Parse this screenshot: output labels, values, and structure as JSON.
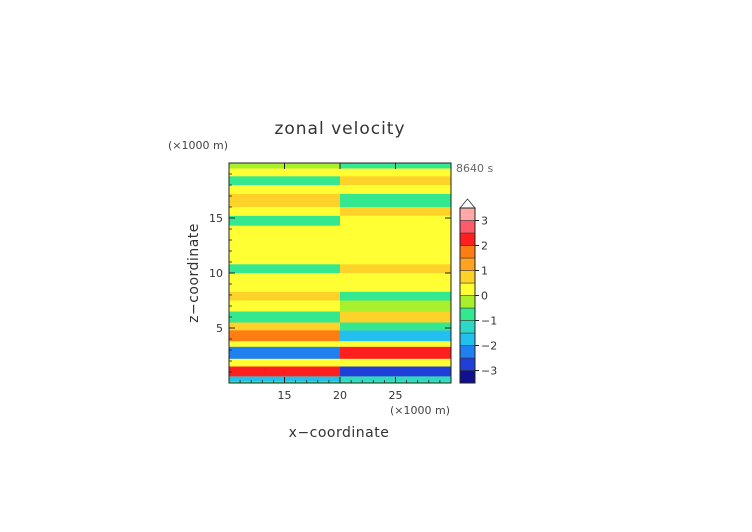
{
  "chart_data": {
    "type": "heatmap",
    "title": "zonal velocity",
    "time_label": "8640 s",
    "xlabel": "x−coordinate",
    "ylabel": "z−coordinate",
    "x_unit": "(×1000 m)",
    "y_unit": "(×1000 m)",
    "xlim": [
      10,
      30
    ],
    "ylim": [
      0,
      20
    ],
    "xticks": [
      15,
      20,
      25
    ],
    "yticks": [
      5,
      10,
      15
    ],
    "colorbar": {
      "levels": [
        -3.5,
        -3,
        -2.5,
        -2,
        -1.5,
        -1,
        -0.5,
        0,
        0.5,
        1,
        1.5,
        2,
        2.5,
        3,
        3.5
      ],
      "tick_values": [
        -3,
        -2,
        -1,
        0,
        1,
        2,
        3
      ],
      "tick_labels": [
        "−3",
        "−2",
        "−1",
        "0",
        "1",
        "2",
        "3"
      ],
      "extend": "max",
      "colors": [
        "#101090",
        "#1f3fd8",
        "#1f80f0",
        "#22c0ef",
        "#2ed8c6",
        "#34e88f",
        "#a8f02c",
        "#ffff33",
        "#ffd22a",
        "#ffa320",
        "#ff7d12",
        "#ff1f1f",
        "#ff5a6a",
        "#ffa8a8"
      ],
      "extend_color": "#ffffff"
    },
    "bands": [
      {
        "z": [
          0.0,
          0.15
        ],
        "left": -0.9,
        "right": -0.9
      },
      {
        "z": [
          0.15,
          0.6
        ],
        "left": -1.6,
        "right": -1.2
      },
      {
        "z": [
          0.6,
          1.5
        ],
        "left": 2.2,
        "right": -2.6
      },
      {
        "z": [
          1.5,
          2.2
        ],
        "left": 0.2,
        "right": 0.1
      },
      {
        "z": [
          2.2,
          3.3
        ],
        "left": -2.4,
        "right": 2.1
      },
      {
        "z": [
          3.3,
          3.8
        ],
        "left": 0.4,
        "right": 0.1
      },
      {
        "z": [
          3.8,
          4.8
        ],
        "left": 1.6,
        "right": -1.8
      },
      {
        "z": [
          4.8,
          5.5
        ],
        "left": 0.6,
        "right": -0.6
      },
      {
        "z": [
          5.5,
          6.5
        ],
        "left": -0.9,
        "right": 0.9
      },
      {
        "z": [
          6.5,
          7.5
        ],
        "left": 0.3,
        "right": -0.4
      },
      {
        "z": [
          7.5,
          8.3
        ],
        "left": 0.5,
        "right": -0.9
      },
      {
        "z": [
          8.3,
          9.0
        ],
        "left": 0.2,
        "right": 0.0
      },
      {
        "z": [
          9.0,
          10.0
        ],
        "left": 0.1,
        "right": 0.2
      },
      {
        "z": [
          10.0,
          10.8
        ],
        "left": -0.6,
        "right": 0.5
      },
      {
        "z": [
          10.8,
          11.6
        ],
        "left": 0.2,
        "right": 0.1
      },
      {
        "z": [
          11.6,
          12.5
        ],
        "left": 0.0,
        "right": 0.3
      },
      {
        "z": [
          12.5,
          13.5
        ],
        "left": 0.4,
        "right": 0.0
      },
      {
        "z": [
          13.5,
          14.3
        ],
        "left": 0.1,
        "right": 0.3
      },
      {
        "z": [
          14.3,
          15.2
        ],
        "left": -0.7,
        "right": 0.1
      },
      {
        "z": [
          15.2,
          16.0
        ],
        "left": 0.2,
        "right": 0.6
      },
      {
        "z": [
          16.0,
          17.2
        ],
        "left": 0.8,
        "right": -0.8
      },
      {
        "z": [
          17.2,
          18.0
        ],
        "left": 0.1,
        "right": 0.2
      },
      {
        "z": [
          18.0,
          18.8
        ],
        "left": -0.6,
        "right": 0.8
      },
      {
        "z": [
          18.8,
          19.5
        ],
        "left": 0.2,
        "right": 0.1
      },
      {
        "z": [
          19.5,
          20.0
        ],
        "left": -0.2,
        "right": -0.9
      }
    ]
  }
}
